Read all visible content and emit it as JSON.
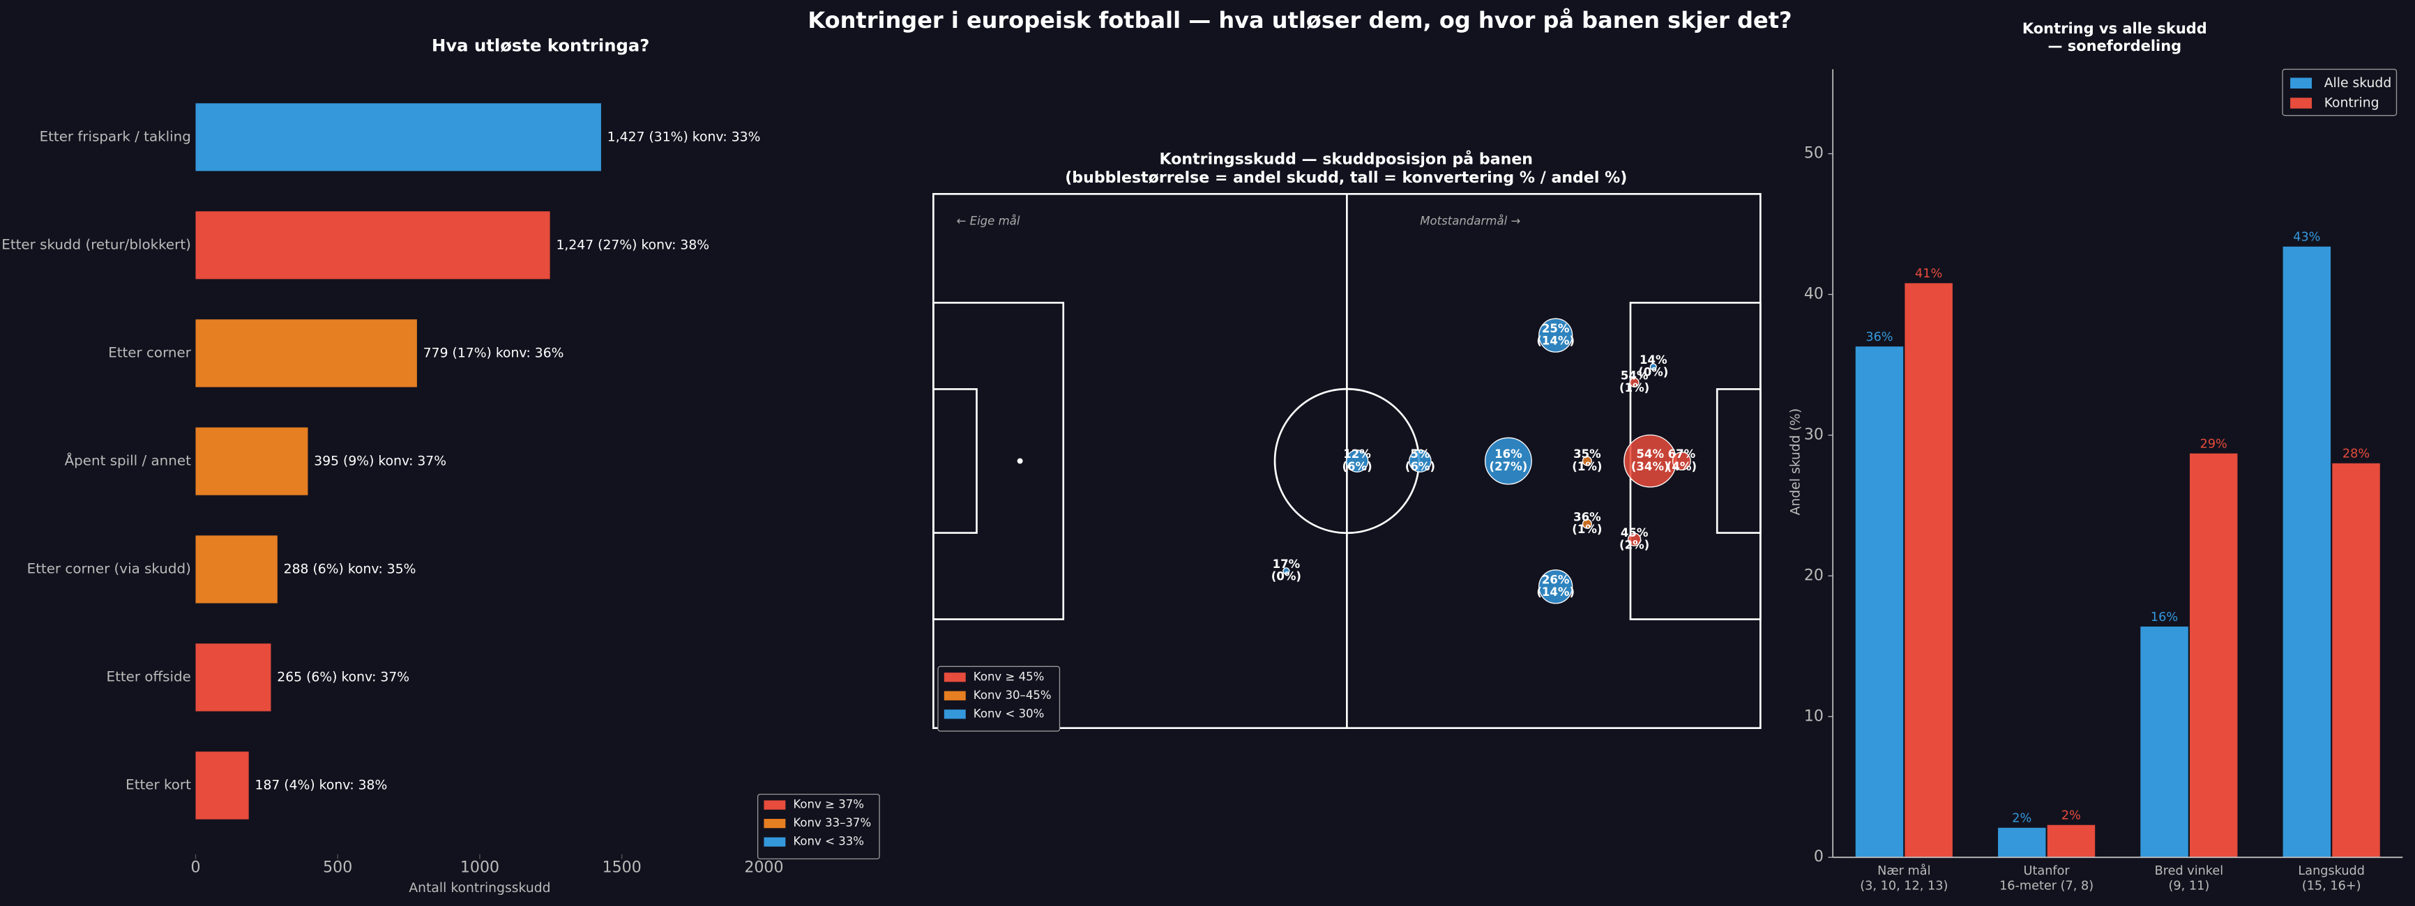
{
  "title": "Kontringer i europeisk fotball — hva utløser dem, og hvor på banen skjer det?",
  "chart_data": [
    {
      "type": "hbar",
      "title": "Hva utløste kontringa?",
      "xlabel": "Antall kontringsskudd",
      "categories": [
        "Etter frispark / takling",
        "Etter skudd (retur/blokkert)",
        "Etter corner",
        "Åpent spill / annet",
        "Etter corner (via skudd)",
        "Etter offside",
        "Etter kort"
      ],
      "values": [
        1427,
        1247,
        779,
        395,
        288,
        265,
        187
      ],
      "value_labels": [
        "1,427  (31%)  konv: 33%",
        "1,247  (27%)  konv: 38%",
        "779  (17%)  konv: 36%",
        "395  (9%)  konv: 37%",
        "288  (6%)  konv: 35%",
        "265  (6%)  konv: 37%",
        "187  (4%)  konv: 38%"
      ],
      "colors": [
        "#3498db",
        "#e74c3c",
        "#e67e22",
        "#e67e22",
        "#e67e22",
        "#e74c3c",
        "#e74c3c"
      ],
      "xlim": [
        0,
        2000
      ],
      "xticks": [
        0,
        500,
        1000,
        1500,
        2000
      ],
      "legend": [
        {
          "label": "Konv ≥ 37%",
          "color": "#e74c3c"
        },
        {
          "label": "Konv 33–37%",
          "color": "#e67e22"
        },
        {
          "label": "Konv < 33%",
          "color": "#3498db"
        }
      ]
    },
    {
      "type": "bubble",
      "title": "Kontringsskudd — skuddposisjon på banen\n(bubblestørrelse = andel skudd, tall = konvertering % / andel %)",
      "annotations": [
        "← Eige mål",
        "Motstandarmål →"
      ],
      "xlim": [
        0,
        105
      ],
      "ylim": [
        0,
        68
      ],
      "series": {
        "x": [
          53.8,
          61.8,
          73,
          83,
          91,
          95,
          79,
          79,
          91.4,
          89,
          83,
          89,
          44.8
        ],
        "y": [
          34,
          34,
          34,
          34,
          34,
          34,
          18,
          50,
          22,
          24,
          42,
          44,
          48
        ],
        "conversion": [
          12,
          5,
          16,
          35,
          54,
          67,
          25,
          26,
          14,
          54,
          36,
          45,
          17
        ],
        "share": [
          6,
          6,
          27,
          1,
          34,
          4,
          14,
          14,
          0,
          1,
          1,
          2,
          0
        ],
        "conversion_labels": [
          "12%",
          "5%",
          "16%",
          "35%",
          "54%",
          "67%",
          "25%",
          "26%",
          "14%",
          "54%",
          "36%",
          "45%",
          "17%"
        ],
        "share_labels": [
          "(6%)",
          "(6%)",
          "(27%)",
          "(1%)",
          "(34%)",
          "(4%)",
          "(14%)",
          "(14%)",
          "(0%)",
          "(1%)",
          "(1%)",
          "(2%)",
          "(0%)"
        ],
        "colors": [
          "#3498db",
          "#3498db",
          "#3498db",
          "#e67e22",
          "#e74c3c",
          "#e74c3c",
          "#3498db",
          "#3498db",
          "#3498db",
          "#e74c3c",
          "#e67e22",
          "#e74c3c",
          "#3498db"
        ]
      },
      "legend": [
        {
          "label": "Konv ≥ 45%",
          "color": "#e74c3c"
        },
        {
          "label": "Konv 30–45%",
          "color": "#e67e22"
        },
        {
          "label": "Konv < 30%",
          "color": "#3498db"
        }
      ]
    },
    {
      "type": "bar",
      "title": "Kontring vs alle skudd\n— sonefordeling",
      "ylabel": "Andel skudd (%)",
      "categories": [
        "Nær mål\n(3, 10, 12, 13)",
        "Utanfor\n16-meter (7, 8)",
        "Bred vinkel\n(9, 11)",
        "Langskudd\n(15, 16+)"
      ],
      "series": [
        {
          "name": "Alle skudd",
          "color": "#3498db",
          "values": [
            36.3,
            2.1,
            16.4,
            43.4
          ],
          "value_labels": [
            "36%",
            "2%",
            "16%",
            "43%"
          ]
        },
        {
          "name": "Kontring",
          "color": "#e74c3c",
          "values": [
            40.8,
            2.3,
            28.7,
            28.0
          ],
          "value_labels": [
            "41%",
            "2%",
            "29%",
            "28%"
          ]
        }
      ],
      "ylim": [
        0,
        56
      ],
      "yticks": [
        0,
        10,
        20,
        30,
        40,
        50
      ]
    }
  ]
}
